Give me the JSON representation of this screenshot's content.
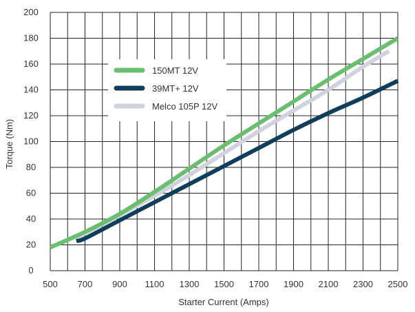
{
  "chart_data": {
    "type": "line",
    "title": "",
    "xlabel": "Starter Current (Amps)",
    "ylabel": "Torque (Nm)",
    "xlim": [
      500,
      2500
    ],
    "ylim": [
      0,
      200
    ],
    "x_ticks": [
      500,
      700,
      900,
      1100,
      1300,
      1500,
      1700,
      1900,
      2100,
      2300,
      2500
    ],
    "y_ticks": [
      0,
      20,
      40,
      60,
      80,
      100,
      120,
      140,
      160,
      180,
      200
    ],
    "grid": true,
    "legend_position": "top-left",
    "series": [
      {
        "name": "150MT 12V",
        "color": "#6abf6e",
        "x": [
          500,
          700,
          900,
          1100,
          1300,
          1500,
          1700,
          1900,
          2100,
          2300,
          2500
        ],
        "y": [
          18,
          30,
          44,
          61,
          79,
          97,
          114,
          131,
          148,
          164,
          180
        ]
      },
      {
        "name": "39MT+ 12V",
        "color": "#0f3d5c",
        "x": [
          650,
          700,
          900,
          1100,
          1300,
          1500,
          1700,
          1900,
          2100,
          2300,
          2500
        ],
        "y": [
          23,
          25,
          39,
          53,
          67,
          81,
          95,
          109,
          122,
          134,
          147
        ]
      },
      {
        "name": "Melco 105P 12V",
        "color": "#cfd3de",
        "x": [
          650,
          700,
          900,
          1100,
          1300,
          1500,
          1700,
          1900,
          2100,
          2300,
          2450
        ],
        "y": [
          26,
          29,
          43,
          58,
          74,
          91,
          108,
          124,
          140,
          158,
          170
        ]
      }
    ]
  }
}
